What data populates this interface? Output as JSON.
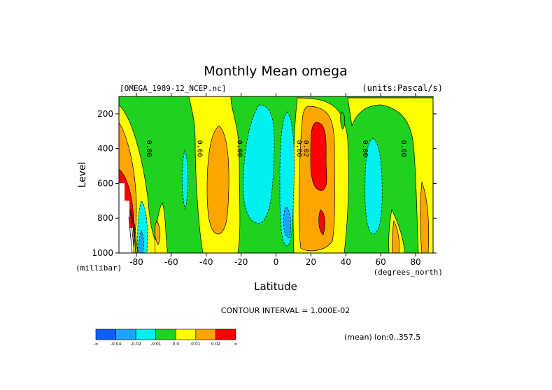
{
  "chart_data": {
    "type": "heatmap",
    "title": "Monthly Mean omega",
    "file_label": "[OMEGA_1989-12_NCEP.nc]",
    "units_label": "(units:Pascal/s)",
    "xlabel": "Latitude",
    "x_units": "(degrees_north)",
    "ylabel": "Level",
    "y_units": "(millibar)",
    "xlim": [
      -90,
      90
    ],
    "ylim": [
      1000,
      100
    ],
    "x_ticks": [
      -80,
      -60,
      -40,
      -20,
      0,
      20,
      40,
      60,
      80
    ],
    "y_ticks": [
      200,
      400,
      600,
      800,
      1000
    ],
    "contour_interval": "CONTOUR INTERVAL = 1.000E-02",
    "footer_note": "(mean) lon:0..357.5",
    "colorbar": {
      "colors": [
        "#0a5fff",
        "#17a5ff",
        "#00f0f0",
        "#1ed21e",
        "#ffff00",
        "#ffa500",
        "#ff0000"
      ],
      "labels": [
        "-∞",
        "-0.04",
        "-0.02",
        "-0.01",
        "0.0",
        "0.01",
        "0.02",
        "∞"
      ]
    },
    "contour_labels": [
      {
        "lat": -74,
        "lev": 400,
        "text": "0.00"
      },
      {
        "lat": -45,
        "lev": 400,
        "text": "0.00"
      },
      {
        "lat": -22,
        "lev": 400,
        "text": "0.00"
      },
      {
        "lat": 12,
        "lev": 400,
        "text": "0.00"
      },
      {
        "lat": 16,
        "lev": 400,
        "text": "0.02"
      },
      {
        "lat": 50,
        "lev": 400,
        "text": "0.00"
      },
      {
        "lat": 72,
        "lev": 400,
        "text": "0.00"
      }
    ]
  }
}
